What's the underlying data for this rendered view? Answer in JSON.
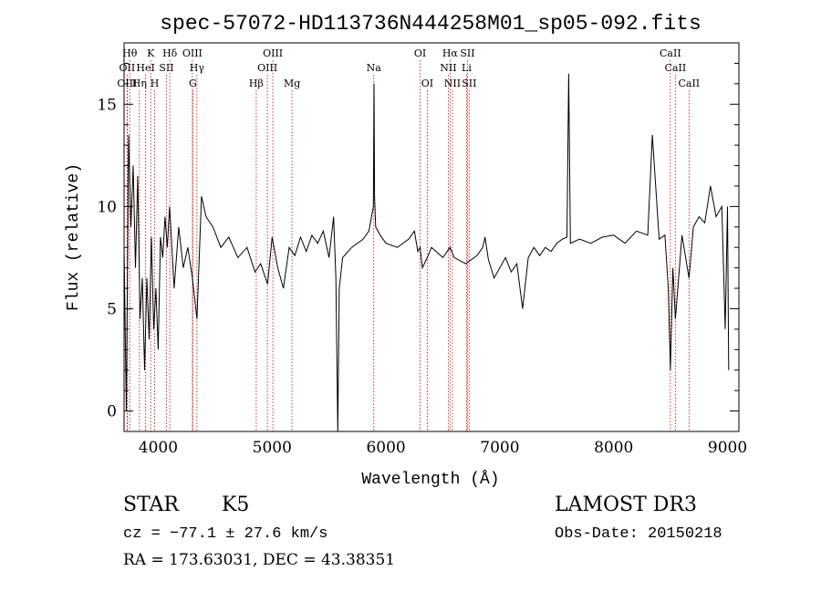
{
  "chart_data": {
    "type": "line",
    "title": "spec-57072-HD113736N444258M01_sp05-092.fits",
    "xlabel": "Wavelength (Å)",
    "ylabel": "Flux (relative)",
    "xlim": [
      3700,
      9100
    ],
    "ylim": [
      -1,
      18
    ],
    "xticks": [
      4000,
      5000,
      6000,
      7000,
      8000,
      9000
    ],
    "yticks": [
      0,
      5,
      10,
      15
    ],
    "grid": false,
    "line_color": "#000000",
    "marker_color": "#cc0000",
    "spectrum": {
      "x": [
        3700,
        3720,
        3740,
        3760,
        3780,
        3800,
        3820,
        3840,
        3860,
        3880,
        3900,
        3920,
        3940,
        3960,
        3980,
        4000,
        4020,
        4040,
        4060,
        4080,
        4100,
        4140,
        4180,
        4220,
        4260,
        4300,
        4340,
        4380,
        4420,
        4480,
        4550,
        4620,
        4700,
        4780,
        4850,
        4900,
        4960,
        5000,
        5050,
        5100,
        5150,
        5200,
        5250,
        5300,
        5350,
        5400,
        5450,
        5500,
        5540,
        5560,
        5577,
        5590,
        5620,
        5700,
        5800,
        5850,
        5890,
        5895,
        5900,
        5910,
        5950,
        6000,
        6100,
        6200,
        6250,
        6280,
        6300,
        6320,
        6363,
        6400,
        6500,
        6563,
        6600,
        6700,
        6800,
        6850,
        6870,
        6900,
        6950,
        7000,
        7050,
        7100,
        7150,
        7200,
        7250,
        7300,
        7350,
        7400,
        7450,
        7500,
        7550,
        7590,
        7605,
        7620,
        7700,
        7800,
        7900,
        8000,
        8100,
        8200,
        8300,
        8340,
        8400,
        8450,
        8480,
        8498,
        8520,
        8542,
        8600,
        8662,
        8700,
        8750,
        8800,
        8850,
        8900,
        8950,
        8980,
        9000,
        9010
      ],
      "y": [
        8.0,
        0.0,
        13.5,
        9.0,
        12.0,
        7.0,
        11.5,
        4.5,
        6.5,
        2.0,
        6.5,
        3.5,
        8.5,
        4.0,
        6.0,
        3.0,
        8.5,
        7.5,
        9.5,
        8.0,
        10.0,
        6.0,
        9.0,
        7.0,
        8.0,
        6.5,
        4.5,
        10.5,
        9.5,
        9.0,
        8.0,
        8.5,
        7.5,
        8.0,
        6.8,
        7.2,
        6.2,
        8.5,
        7.0,
        6.0,
        8.0,
        7.6,
        8.5,
        7.8,
        8.6,
        8.2,
        8.8,
        7.5,
        9.5,
        6.5,
        -1.0,
        6.0,
        7.5,
        8.0,
        8.4,
        8.8,
        10.0,
        16.0,
        10.5,
        9.0,
        8.6,
        8.2,
        8.0,
        8.4,
        8.8,
        7.8,
        8.0,
        7.0,
        7.5,
        8.0,
        7.5,
        8.0,
        7.5,
        7.2,
        7.6,
        8.0,
        8.5,
        7.4,
        6.5,
        7.0,
        7.5,
        6.8,
        7.2,
        5.0,
        7.5,
        8.0,
        7.6,
        8.0,
        7.8,
        8.2,
        8.4,
        8.5,
        16.5,
        8.2,
        8.4,
        8.2,
        8.5,
        8.6,
        8.2,
        8.8,
        8.6,
        13.5,
        8.4,
        8.6,
        6.0,
        2.0,
        7.0,
        4.5,
        8.6,
        6.5,
        9.0,
        9.5,
        9.2,
        11.0,
        9.5,
        10.0,
        4.0,
        10.0,
        2.0
      ]
    },
    "lines": [
      {
        "label": "OII",
        "wavelength": 3727,
        "row": 2
      },
      {
        "label": "OIII",
        "wavelength": 3727,
        "row": 3
      },
      {
        "label": "Hθ",
        "wavelength": 3750,
        "row": 1
      },
      {
        "label": "Hη",
        "wavelength": 3835,
        "row": 3
      },
      {
        "label": "HeI",
        "wavelength": 3889,
        "row": 2
      },
      {
        "label": "K",
        "wavelength": 3934,
        "row": 1
      },
      {
        "label": "H",
        "wavelength": 3969,
        "row": 3
      },
      {
        "label": "SII",
        "wavelength": 4072,
        "row": 2
      },
      {
        "label": "Hδ",
        "wavelength": 4102,
        "row": 1
      },
      {
        "label": "OIII",
        "wavelength": 4300,
        "row": 1
      },
      {
        "label": "Hγ",
        "wavelength": 4340,
        "row": 2
      },
      {
        "label": "G",
        "wavelength": 4304,
        "row": 3
      },
      {
        "label": "Hβ",
        "wavelength": 4861,
        "row": 3
      },
      {
        "label": "OIII",
        "wavelength": 5007,
        "row": 1
      },
      {
        "label": "OIII",
        "wavelength": 4959,
        "row": 2
      },
      {
        "label": "Mg",
        "wavelength": 5175,
        "row": 3
      },
      {
        "label": "Na",
        "wavelength": 5893,
        "row": 2
      },
      {
        "label": "OI",
        "wavelength": 6300,
        "row": 1
      },
      {
        "label": "OI",
        "wavelength": 6363,
        "row": 3
      },
      {
        "label": "Hα",
        "wavelength": 6563,
        "row": 1
      },
      {
        "label": "SII",
        "wavelength": 6716,
        "row": 1
      },
      {
        "label": "NII",
        "wavelength": 6548,
        "row": 2
      },
      {
        "label": "Li",
        "wavelength": 6708,
        "row": 2
      },
      {
        "label": "NII",
        "wavelength": 6584,
        "row": 3
      },
      {
        "label": "SII",
        "wavelength": 6731,
        "row": 3
      },
      {
        "label": "CaII",
        "wavelength": 8498,
        "row": 1
      },
      {
        "label": "CaII",
        "wavelength": 8542,
        "row": 2
      },
      {
        "label": "CaII",
        "wavelength": 8662,
        "row": 3
      }
    ]
  },
  "info": {
    "class": "STAR",
    "subclass": "K5",
    "survey": "LAMOST DR3",
    "cz": "cz = −77.1 ± 27.6 km/s",
    "obs_date": "Obs-Date: 20150218",
    "coords": "RA = 173.63031, DEC =  43.38351"
  }
}
